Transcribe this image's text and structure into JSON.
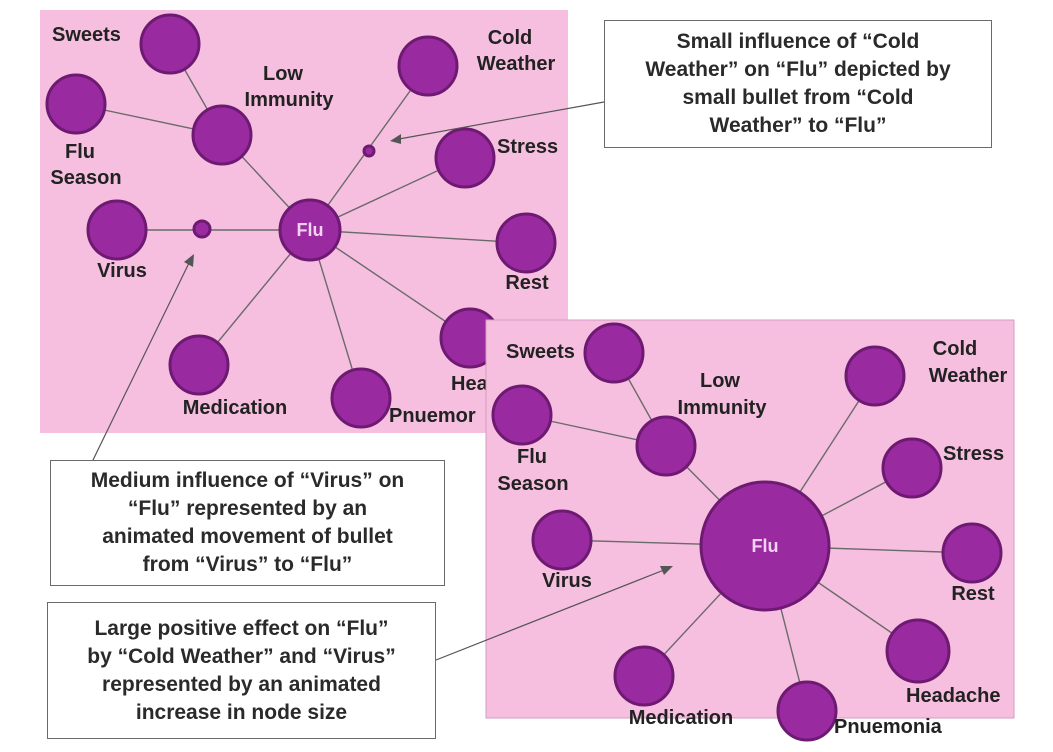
{
  "colors": {
    "panel": "#f7bfdf",
    "node": "#9a2aa0",
    "node_stroke": "#6e1a73",
    "edge": "#6a6a6a"
  },
  "graph1": {
    "center_label": "Flu",
    "labels": {
      "sweets": "Sweets",
      "low_immunity": [
        "Low",
        "Immunity"
      ],
      "cold_weather": [
        "Cold",
        "Weather"
      ],
      "flu_season": [
        "Flu",
        "Season"
      ],
      "stress": "Stress",
      "virus": "Virus",
      "rest": "Rest",
      "headache": "Hea",
      "pneumonia": "Pnuemor",
      "medication": "Medication"
    }
  },
  "graph2": {
    "center_label": "Flu",
    "labels": {
      "sweets": "Sweets",
      "low_immunity": [
        "Low",
        "Immunity"
      ],
      "cold_weather": [
        "Cold",
        "Weather"
      ],
      "flu_season": [
        "Flu",
        "Season"
      ],
      "stress": "Stress",
      "virus": "Virus",
      "rest": "Rest",
      "headache": "Headache",
      "pneumonia": "Pnuemonia",
      "medication": "Medication"
    }
  },
  "notes": {
    "small": [
      "Small influence of “Cold",
      "Weather” on “Flu” depicted by",
      "small bullet from “Cold",
      "Weather” to “Flu”"
    ],
    "medium": [
      "Medium influence of “Virus” on",
      "“Flu” represented by an",
      "animated movement of bullet",
      "from “Virus” to “Flu”"
    ],
    "large": [
      "Large positive effect on “Flu”",
      "by “Cold Weather” and “Virus”",
      "represented by an animated",
      "increase in node size"
    ]
  }
}
